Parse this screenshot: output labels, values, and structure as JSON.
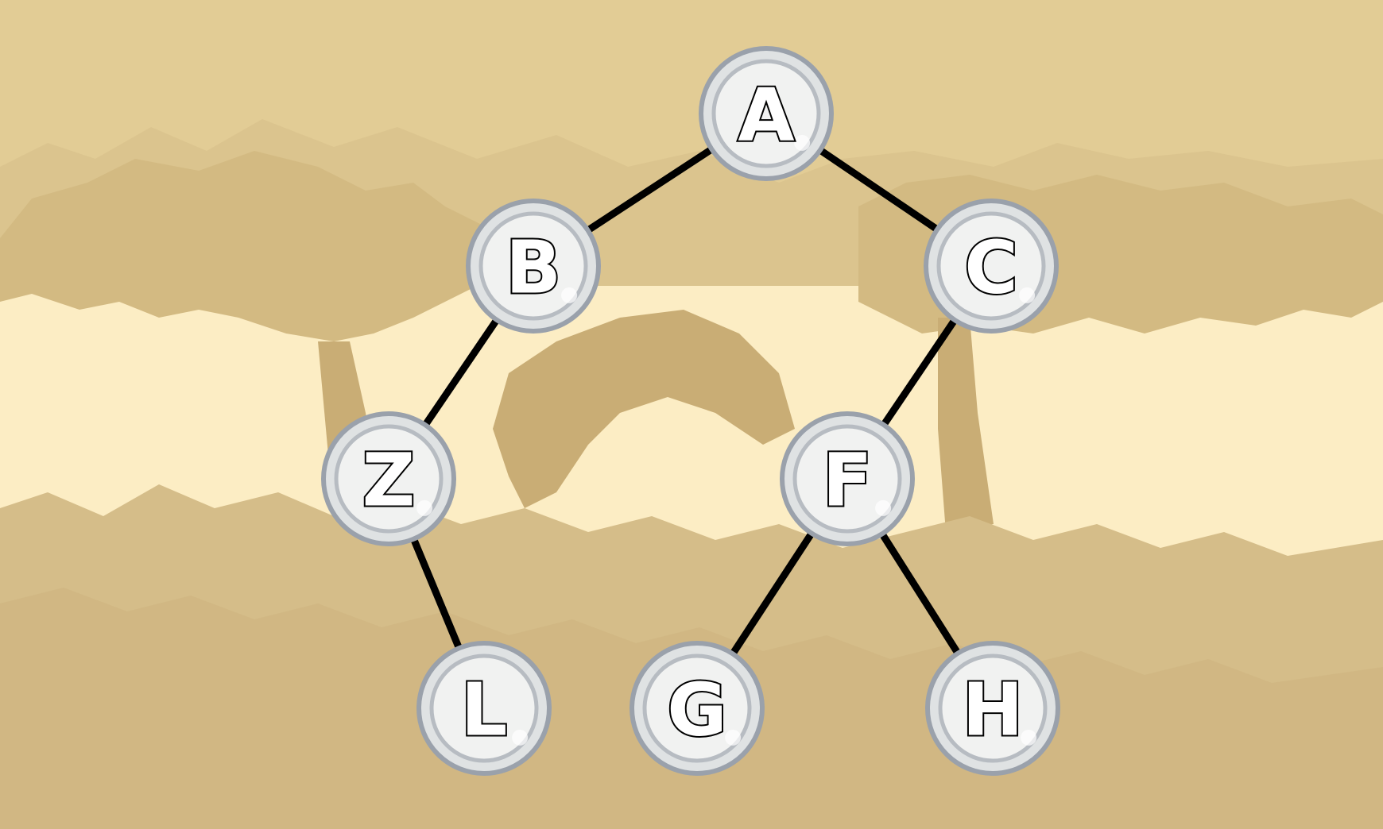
{
  "tree": {
    "nodes": [
      {
        "id": "A",
        "label": "A"
      },
      {
        "id": "B",
        "label": "B"
      },
      {
        "id": "C",
        "label": "C"
      },
      {
        "id": "Z",
        "label": "Z"
      },
      {
        "id": "F",
        "label": "F"
      },
      {
        "id": "L",
        "label": "L"
      },
      {
        "id": "G",
        "label": "G"
      },
      {
        "id": "H",
        "label": "H"
      }
    ],
    "edges": [
      [
        "A",
        "B"
      ],
      [
        "A",
        "C"
      ],
      [
        "B",
        "Z"
      ],
      [
        "C",
        "F"
      ],
      [
        "Z",
        "L"
      ],
      [
        "F",
        "G"
      ],
      [
        "F",
        "H"
      ]
    ]
  },
  "colors": {
    "sky": "#e2cc95",
    "pale_light": "#fcedc4",
    "foliage_light": "#d7c08b",
    "foliage_dark": "#c9ad75",
    "ground": "#d5bd89",
    "node_fill": "#f1f2f1",
    "node_ring": "#9aa1ab",
    "edge": "#000000"
  }
}
